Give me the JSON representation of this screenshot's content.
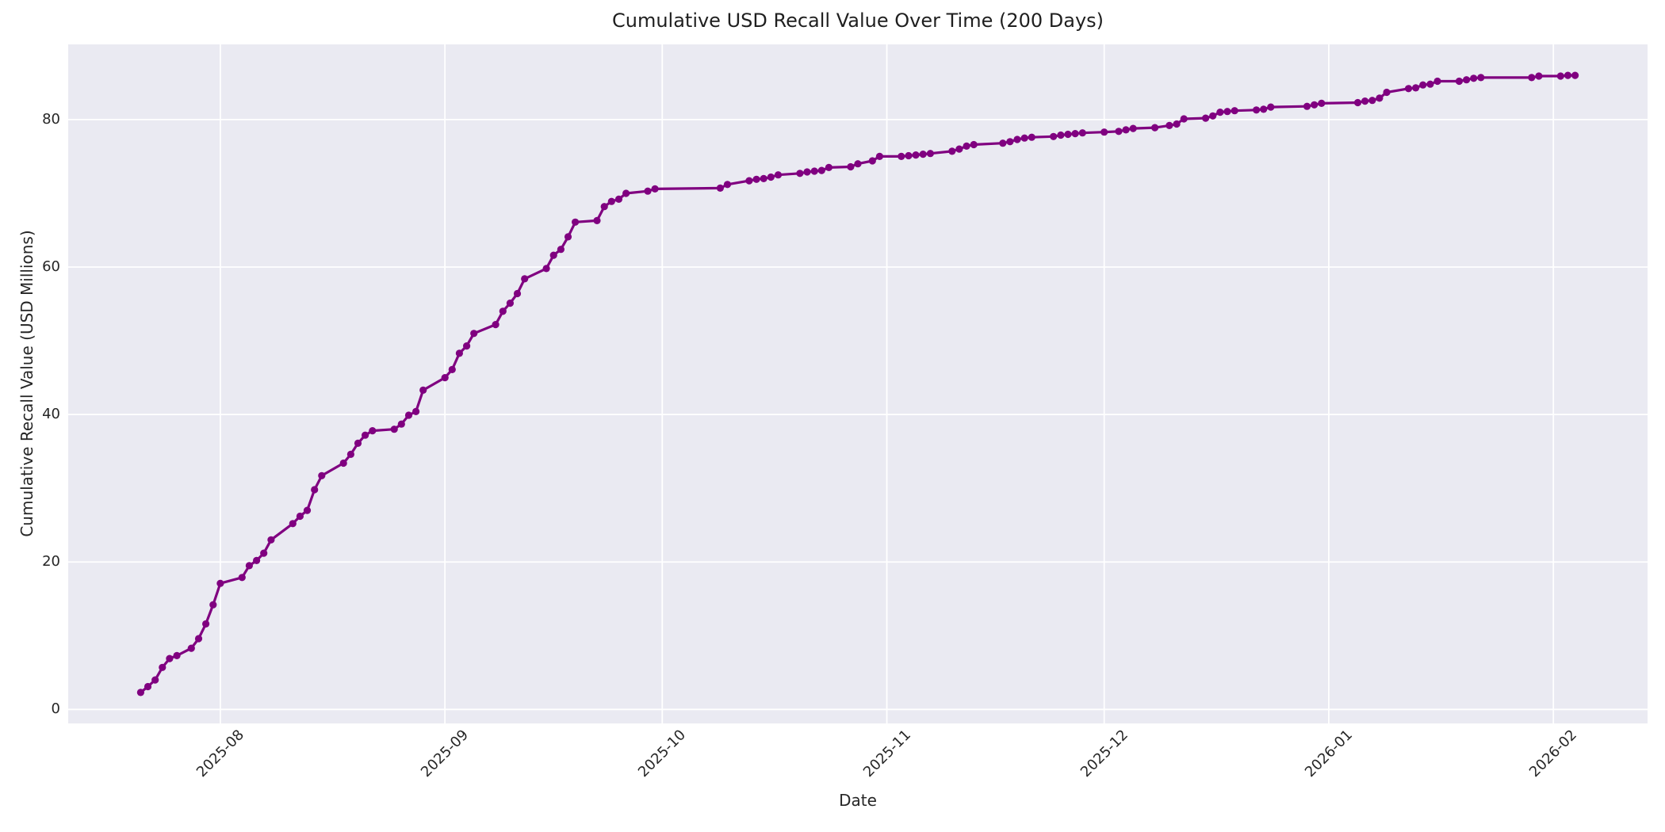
{
  "chart_data": {
    "type": "line",
    "title": "Cumulative USD Recall Value Over Time (200 Days)",
    "xlabel": "Date",
    "ylabel": "Cumulative Recall Value (USD Millions)",
    "legend": "none",
    "grid": true,
    "plot_bg_color": "#EAEAF2",
    "grid_color": "#FFFFFF",
    "figure_bg_color": "#FFFFFF",
    "line_color": "#800080",
    "text_color": "#262626",
    "marker": "circle",
    "x_domain": [
      "2025-07-11",
      "2026-02-14"
    ],
    "ylim": [
      -1.9,
      90.2
    ],
    "x_tick_dates": [
      "2025-08-01",
      "2025-09-01",
      "2025-10-01",
      "2025-11-01",
      "2025-12-01",
      "2026-01-01",
      "2026-02-01"
    ],
    "x_tick_labels": [
      "2025-08",
      "2025-09",
      "2025-10",
      "2025-11",
      "2025-12",
      "2026-01",
      "2026-02"
    ],
    "y_ticks": [
      0,
      20,
      40,
      60,
      80
    ],
    "series": [
      {
        "name": "cumulative_recall_value",
        "points": [
          [
            "2025-07-21",
            2.3
          ],
          [
            "2025-07-22",
            3.1
          ],
          [
            "2025-07-23",
            4.0
          ],
          [
            "2025-07-24",
            5.7
          ],
          [
            "2025-07-25",
            6.9
          ],
          [
            "2025-07-26",
            7.3
          ],
          [
            "2025-07-28",
            8.3
          ],
          [
            "2025-07-29",
            9.6
          ],
          [
            "2025-07-30",
            11.6
          ],
          [
            "2025-07-31",
            14.2
          ],
          [
            "2025-08-01",
            17.1
          ],
          [
            "2025-08-04",
            17.9
          ],
          [
            "2025-08-05",
            19.5
          ],
          [
            "2025-08-06",
            20.2
          ],
          [
            "2025-08-07",
            21.2
          ],
          [
            "2025-08-08",
            23.0
          ],
          [
            "2025-08-11",
            25.2
          ],
          [
            "2025-08-12",
            26.2
          ],
          [
            "2025-08-13",
            27.0
          ],
          [
            "2025-08-14",
            29.8
          ],
          [
            "2025-08-15",
            31.7
          ],
          [
            "2025-08-18",
            33.4
          ],
          [
            "2025-08-19",
            34.6
          ],
          [
            "2025-08-20",
            36.1
          ],
          [
            "2025-08-21",
            37.2
          ],
          [
            "2025-08-22",
            37.8
          ],
          [
            "2025-08-25",
            38.0
          ],
          [
            "2025-08-26",
            38.7
          ],
          [
            "2025-08-27",
            39.9
          ],
          [
            "2025-08-28",
            40.4
          ],
          [
            "2025-08-29",
            43.3
          ],
          [
            "2025-09-01",
            45.0
          ],
          [
            "2025-09-02",
            46.1
          ],
          [
            "2025-09-03",
            48.3
          ],
          [
            "2025-09-04",
            49.3
          ],
          [
            "2025-09-05",
            51.0
          ],
          [
            "2025-09-08",
            52.2
          ],
          [
            "2025-09-09",
            54.0
          ],
          [
            "2025-09-10",
            55.1
          ],
          [
            "2025-09-11",
            56.4
          ],
          [
            "2025-09-12",
            58.4
          ],
          [
            "2025-09-15",
            59.8
          ],
          [
            "2025-09-16",
            61.6
          ],
          [
            "2025-09-17",
            62.4
          ],
          [
            "2025-09-18",
            64.1
          ],
          [
            "2025-09-19",
            66.1
          ],
          [
            "2025-09-22",
            66.3
          ],
          [
            "2025-09-23",
            68.2
          ],
          [
            "2025-09-24",
            68.9
          ],
          [
            "2025-09-25",
            69.2
          ],
          [
            "2025-09-26",
            70.0
          ],
          [
            "2025-09-29",
            70.3
          ],
          [
            "2025-09-30",
            70.6
          ],
          [
            "2025-10-09",
            70.7
          ],
          [
            "2025-10-10",
            71.2
          ],
          [
            "2025-10-13",
            71.7
          ],
          [
            "2025-10-14",
            71.9
          ],
          [
            "2025-10-15",
            72.0
          ],
          [
            "2025-10-16",
            72.2
          ],
          [
            "2025-10-17",
            72.5
          ],
          [
            "2025-10-20",
            72.7
          ],
          [
            "2025-10-21",
            72.9
          ],
          [
            "2025-10-22",
            73.0
          ],
          [
            "2025-10-23",
            73.1
          ],
          [
            "2025-10-24",
            73.5
          ],
          [
            "2025-10-27",
            73.6
          ],
          [
            "2025-10-28",
            74.0
          ],
          [
            "2025-10-30",
            74.4
          ],
          [
            "2025-10-31",
            75.0
          ],
          [
            "2025-11-03",
            75.0
          ],
          [
            "2025-11-04",
            75.1
          ],
          [
            "2025-11-05",
            75.2
          ],
          [
            "2025-11-06",
            75.3
          ],
          [
            "2025-11-07",
            75.4
          ],
          [
            "2025-11-10",
            75.7
          ],
          [
            "2025-11-11",
            76.0
          ],
          [
            "2025-11-12",
            76.4
          ],
          [
            "2025-11-13",
            76.6
          ],
          [
            "2025-11-17",
            76.8
          ],
          [
            "2025-11-18",
            77.0
          ],
          [
            "2025-11-19",
            77.3
          ],
          [
            "2025-11-20",
            77.5
          ],
          [
            "2025-11-21",
            77.6
          ],
          [
            "2025-11-24",
            77.7
          ],
          [
            "2025-11-25",
            77.9
          ],
          [
            "2025-11-26",
            78.0
          ],
          [
            "2025-11-27",
            78.1
          ],
          [
            "2025-11-28",
            78.2
          ],
          [
            "2025-12-01",
            78.3
          ],
          [
            "2025-12-03",
            78.4
          ],
          [
            "2025-12-04",
            78.6
          ],
          [
            "2025-12-05",
            78.8
          ],
          [
            "2025-12-08",
            78.9
          ],
          [
            "2025-12-10",
            79.2
          ],
          [
            "2025-12-11",
            79.4
          ],
          [
            "2025-12-12",
            80.1
          ],
          [
            "2025-12-15",
            80.2
          ],
          [
            "2025-12-16",
            80.5
          ],
          [
            "2025-12-17",
            81.0
          ],
          [
            "2025-12-18",
            81.1
          ],
          [
            "2025-12-19",
            81.2
          ],
          [
            "2025-12-22",
            81.3
          ],
          [
            "2025-12-23",
            81.4
          ],
          [
            "2025-12-24",
            81.7
          ],
          [
            "2025-12-29",
            81.8
          ],
          [
            "2025-12-30",
            82.0
          ],
          [
            "2025-12-31",
            82.2
          ],
          [
            "2026-01-05",
            82.3
          ],
          [
            "2026-01-06",
            82.5
          ],
          [
            "2026-01-07",
            82.6
          ],
          [
            "2026-01-08",
            82.9
          ],
          [
            "2026-01-09",
            83.7
          ],
          [
            "2026-01-12",
            84.2
          ],
          [
            "2026-01-13",
            84.3
          ],
          [
            "2026-01-14",
            84.7
          ],
          [
            "2026-01-15",
            84.8
          ],
          [
            "2026-01-16",
            85.2
          ],
          [
            "2026-01-19",
            85.2
          ],
          [
            "2026-01-20",
            85.4
          ],
          [
            "2026-01-21",
            85.6
          ],
          [
            "2026-01-22",
            85.7
          ],
          [
            "2026-01-29",
            85.7
          ],
          [
            "2026-01-30",
            85.9
          ],
          [
            "2026-02-02",
            85.9
          ],
          [
            "2026-02-03",
            86.0
          ],
          [
            "2026-02-04",
            86.0
          ]
        ]
      }
    ]
  }
}
